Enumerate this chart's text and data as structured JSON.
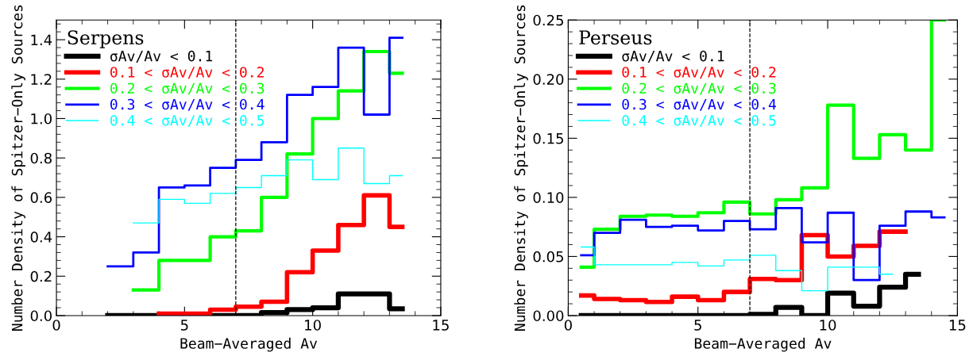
{
  "chart_data": [
    {
      "type": "step",
      "legend_title": "Serpens",
      "xlabel": "Beam−Averaged Av",
      "ylabel": "Number Density of Spitzer−Only Sources",
      "xlim": [
        0,
        15
      ],
      "xticks": [
        0,
        5,
        10,
        15
      ],
      "ylim": [
        0,
        1.5
      ],
      "yticks": [
        {
          "value": 0,
          "label": "0.0"
        },
        0.2,
        0.4,
        0.6,
        0.8,
        {
          "value": 1,
          "label": "1.0"
        },
        1.2,
        1.4
      ],
      "legend": "top left",
      "grid": false,
      "ref_lines": [
        {
          "axis": "x",
          "value": 7,
          "line_style": "dashed",
          "color": "#000000"
        }
      ],
      "series": [
        {
          "name": "σAv/Av < 0.1",
          "color": "#000000",
          "x": [
            2,
            3,
            4,
            5,
            6,
            7,
            8,
            9,
            10,
            11,
            12,
            13,
            13.5
          ],
          "values": [
            0,
            0,
            0,
            0,
            0,
            0,
            0.015,
            0.03,
            0.04,
            0.11,
            0.11,
            0.035,
            0.035
          ]
        },
        {
          "name": "0.1 < σAv/Av < 0.2",
          "color": "#ff0000",
          "x": [
            4,
            5,
            6,
            7,
            8,
            9,
            10,
            11,
            12,
            13,
            13.5
          ],
          "values": [
            0.01,
            0.01,
            0.03,
            0.045,
            0.07,
            0.22,
            0.33,
            0.46,
            0.61,
            0.45,
            0.45
          ]
        },
        {
          "name": "0.2 < σAv/Av < 0.3",
          "color": "#00ff00",
          "x": [
            3,
            4,
            5,
            6,
            7,
            8,
            9,
            10,
            11,
            12,
            13,
            13.5
          ],
          "values": [
            0.13,
            0.28,
            0.28,
            0.4,
            0.43,
            0.6,
            0.82,
            1.0,
            1.14,
            1.34,
            1.23,
            1.23
          ]
        },
        {
          "name": "0.3 < σAv/Av < 0.4",
          "color": "#0000ff",
          "x": [
            2,
            3,
            4,
            5,
            6,
            7,
            8,
            9,
            10,
            11,
            12,
            13,
            13.5
          ],
          "values": [
            0.25,
            0.32,
            0.65,
            0.66,
            0.75,
            0.79,
            0.88,
            1.12,
            1.16,
            1.36,
            1.02,
            1.41,
            1.41
          ]
        },
        {
          "name": "0.4 < σAv/Av < 0.5",
          "color": "#00ffff",
          "x": [
            3,
            4,
            5,
            6,
            7,
            8,
            9,
            10,
            11,
            12,
            13,
            13.5
          ],
          "values": [
            0.47,
            0.59,
            0.57,
            0.62,
            0.65,
            0.71,
            0.79,
            0.69,
            0.85,
            0.67,
            0.71,
            0.71
          ]
        }
      ]
    },
    {
      "type": "step",
      "legend_title": "Perseus",
      "xlabel": "Beam−Averaged Av",
      "ylabel": "Number Density of Spitzer−Only Sources",
      "xlim": [
        0,
        15
      ],
      "xticks": [
        0,
        5,
        10,
        15
      ],
      "ylim": [
        0,
        0.25
      ],
      "yticks": [
        {
          "value": 0,
          "label": "0.00"
        },
        0.05,
        {
          "value": 0.1,
          "label": "0.10"
        },
        0.15,
        {
          "value": 0.2,
          "label": "0.20"
        },
        0.25
      ],
      "legend": "top left",
      "grid": false,
      "ref_lines": [
        {
          "axis": "x",
          "value": 7,
          "line_style": "dashed",
          "color": "#000000"
        }
      ],
      "series": [
        {
          "name": "σAv/Av < 0.1",
          "color": "#000000",
          "x": [
            0.5,
            1,
            2,
            3,
            4,
            5,
            6,
            7,
            8,
            9,
            10,
            11,
            12,
            13,
            13.5
          ],
          "values": [
            0,
            0,
            0,
            0,
            0,
            0,
            0,
            0.001,
            0.007,
            0,
            0.019,
            0.008,
            0.024,
            0.035,
            0.035
          ]
        },
        {
          "name": "0.1 < σAv/Av < 0.2",
          "color": "#ff0000",
          "x": [
            0.5,
            1,
            2,
            3,
            4,
            5,
            6,
            7,
            8,
            9,
            10,
            11,
            12,
            13
          ],
          "values": [
            0.017,
            0.014,
            0.013,
            0.0115,
            0.016,
            0.013,
            0.02,
            0.031,
            0.03,
            0.068,
            0.05,
            0.059,
            0.071,
            0.071
          ]
        },
        {
          "name": "0.2 < σAv/Av < 0.3",
          "color": "#00ff00",
          "x": [
            0.5,
            1,
            2,
            3,
            4,
            5,
            6,
            7,
            8,
            9,
            10,
            11,
            12,
            13,
            14,
            14.5
          ],
          "values": [
            0.041,
            0.073,
            0.084,
            0.085,
            0.084,
            0.087,
            0.096,
            0.086,
            0.098,
            0.108,
            0.178,
            0.133,
            0.153,
            0.14,
            0.25,
            0.25
          ]
        },
        {
          "name": "0.3 < σAv/Av < 0.4",
          "color": "#0000ff",
          "x": [
            0.5,
            1,
            2,
            3,
            4,
            5,
            6,
            7,
            8,
            9,
            10,
            11,
            12,
            13,
            14,
            14.5
          ],
          "values": [
            0.051,
            0.07,
            0.081,
            0.075,
            0.076,
            0.072,
            0.08,
            0.073,
            0.091,
            0.062,
            0.087,
            0.03,
            0.076,
            0.088,
            0.083,
            0.083
          ]
        },
        {
          "name": "0.4 < σAv/Av < 0.5",
          "color": "#00ffff",
          "x": [
            0.5,
            1,
            2,
            3,
            4,
            5,
            6,
            7,
            8,
            9,
            10,
            11,
            12,
            12.5
          ],
          "values": [
            0.058,
            0.043,
            0.043,
            0.043,
            0.045,
            0.042,
            0.047,
            0.051,
            0.038,
            0.021,
            0.041,
            0.041,
            0.035,
            0.035
          ]
        }
      ]
    }
  ]
}
